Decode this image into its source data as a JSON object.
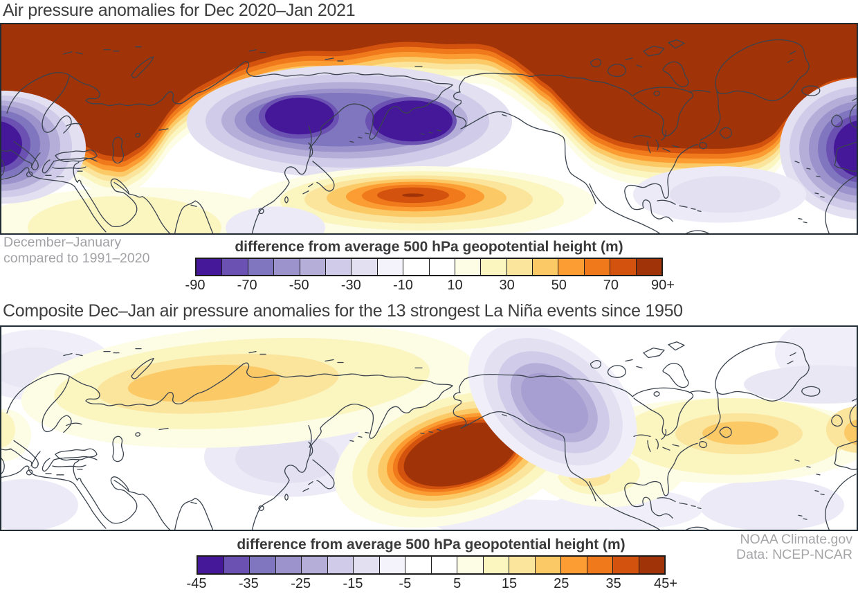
{
  "panel1": {
    "title": "Air pressure anomalies for Dec 2020–Jan 2021",
    "note": {
      "line1": "December–January",
      "line2": "compared to 1991–2020"
    },
    "colorbar": {
      "label": "difference from average 500 hPa geopotential height (m)",
      "ticks": [
        "-90",
        "-70",
        "-50",
        "-30",
        "-10",
        "10",
        "30",
        "50",
        "70",
        "90+"
      ]
    }
  },
  "panel2": {
    "title": "Composite Dec–Jan air pressure anomalies for the 13 strongest La Niña events since 1950",
    "colorbar": {
      "label": "difference from average 500 hPa geopotential height (m)",
      "ticks": [
        "-45",
        "-35",
        "-25",
        "-15",
        "-5",
        "5",
        "15",
        "25",
        "35",
        "45+"
      ]
    },
    "credit": {
      "line1": "NOAA Climate.gov",
      "line2": "Data: NCEP-NCAR"
    }
  },
  "palette": [
    "#45189a",
    "#6a51b2",
    "#8076bf",
    "#9c93cc",
    "#b5aed9",
    "#cfcbe8",
    "#e3e0f2",
    "#f4f3fb",
    "#ffffff",
    "#ffffff",
    "#fdfce4",
    "#fbf5c0",
    "#fbe49c",
    "#fcc967",
    "#fb9d32",
    "#f0791c",
    "#d2520e",
    "#a03408"
  ],
  "chart_data": [
    {
      "type": "heatmap",
      "title": "Air pressure anomalies for Dec 2020–Jan 2021",
      "subtitle": "December–January compared to 1991–2020",
      "variable": "difference from average 500 hPa geopotential height (m)",
      "region": "Northern Hemisphere, equirectangular world map (0–360°E, ~10–90°N)",
      "legend_position": "bottom",
      "colorbar_bins": 18,
      "colorbar_range": [
        -90,
        90
      ],
      "colorbar_open_ended_max": "90+",
      "tick_values": [
        -90,
        -70,
        -50,
        -30,
        -10,
        10,
        30,
        50,
        70,
        90
      ],
      "anomaly_centers": [
        {
          "region": "Arctic cap: Scandinavia, western Russia, northeastern Canada, Greenland",
          "sign": "positive",
          "approx_value_m": 90
        },
        {
          "region": "ridge tongue over Urals toward Caspian Sea",
          "sign": "positive",
          "approx_value_m": 90
        },
        {
          "region": "central Siberia",
          "sign": "negative",
          "approx_value_m": -90
        },
        {
          "region": "Kamchatka / Bering Sea / North Pacific",
          "sign": "negative",
          "approx_value_m": -90
        },
        {
          "region": "western Europe / northeast Atlantic",
          "sign": "negative",
          "approx_value_m": -90
        },
        {
          "region": "subtropical western North Pacific south of Japan",
          "sign": "positive",
          "approx_value_m": 75
        },
        {
          "region": "southeastern United States / western Atlantic",
          "sign": "negative",
          "approx_value_m": -15
        }
      ]
    },
    {
      "type": "heatmap",
      "title": "Composite Dec–Jan air pressure anomalies for the 13 strongest La Niña events since 1950",
      "variable": "difference from average 500 hPa geopotential height (m)",
      "region": "Northern Hemisphere, equirectangular world map (0–360°E, ~10–90°N)",
      "legend_position": "bottom",
      "colorbar_bins": 18,
      "colorbar_range": [
        -45,
        45
      ],
      "colorbar_open_ended_max": "45+",
      "tick_values": [
        -45,
        -35,
        -25,
        -15,
        -5,
        5,
        15,
        25,
        35,
        45
      ],
      "anomaly_centers": [
        {
          "region": "central North Pacific south of the Aleutians",
          "sign": "positive",
          "approx_value_m": 45
        },
        {
          "region": "Alaska / Yukon / northwestern Canada",
          "sign": "negative",
          "approx_value_m": -30
        },
        {
          "region": "north-central Siberia",
          "sign": "positive",
          "approx_value_m": 20
        },
        {
          "region": "eastern North America / North Atlantic near Iceland",
          "sign": "positive",
          "approx_value_m": 20
        },
        {
          "region": "central Asia",
          "sign": "negative",
          "approx_value_m": -10
        },
        {
          "region": "Scandinavia",
          "sign": "negative",
          "approx_value_m": -10
        }
      ],
      "credit": "NOAA Climate.gov, Data: NCEP-NCAR"
    }
  ]
}
